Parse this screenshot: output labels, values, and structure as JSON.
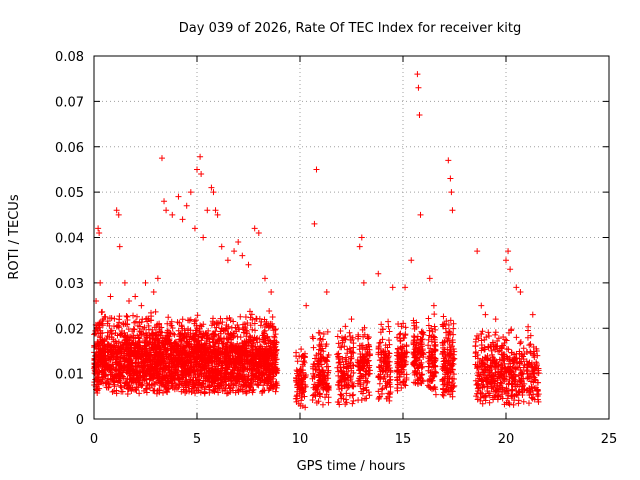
{
  "chart_data": {
    "type": "scatter",
    "title": "Day 039 of 2026, Rate Of TEC Index for receiver kitg",
    "xlabel": "GPS time / hours",
    "ylabel": "ROTI / TECUs",
    "xlim": [
      0,
      25
    ],
    "ylim": [
      0,
      0.08
    ],
    "x_ticks": [
      "0",
      "5",
      "10",
      "15",
      "20",
      "25"
    ],
    "y_ticks": [
      "0",
      "0.01",
      "0.02",
      "0.03",
      "0.04",
      "0.05",
      "0.06",
      "0.07",
      "0.08"
    ],
    "grid": true,
    "marker": "+",
    "color": "#ff0000",
    "series": [
      {
        "name": "ROTI",
        "x": [
          0.1,
          0.2,
          0.25,
          0.3,
          0.8,
          1.1,
          1.2,
          1.25,
          1.5,
          1.7,
          2.0,
          2.3,
          2.5,
          2.9,
          3.1,
          3.3,
          3.4,
          3.5,
          3.8,
          4.1,
          4.3,
          4.5,
          4.7,
          4.9,
          5.0,
          5.15,
          5.2,
          5.3,
          5.5,
          5.7,
          5.8,
          5.9,
          6.0,
          6.2,
          6.5,
          6.8,
          7.0,
          7.2,
          7.5,
          7.8,
          8.0,
          8.3,
          8.6,
          10.3,
          10.7,
          10.8,
          11.3,
          12.5,
          12.9,
          13.0,
          13.1,
          13.8,
          14.5,
          15.1,
          15.4,
          15.7,
          15.75,
          15.8,
          15.85,
          16.3,
          16.5,
          17.2,
          17.3,
          17.35,
          17.4,
          18.6,
          18.8,
          19.0,
          19.5,
          20.0,
          20.1,
          20.2,
          20.5,
          20.7,
          21.3
        ],
        "y": [
          0.026,
          0.042,
          0.041,
          0.03,
          0.027,
          0.046,
          0.045,
          0.038,
          0.03,
          0.026,
          0.027,
          0.025,
          0.03,
          0.028,
          0.031,
          0.0575,
          0.048,
          0.046,
          0.045,
          0.049,
          0.044,
          0.047,
          0.05,
          0.042,
          0.055,
          0.0578,
          0.054,
          0.04,
          0.046,
          0.051,
          0.05,
          0.046,
          0.045,
          0.038,
          0.035,
          0.037,
          0.039,
          0.036,
          0.034,
          0.042,
          0.041,
          0.031,
          0.028,
          0.025,
          0.043,
          0.055,
          0.028,
          0.022,
          0.038,
          0.04,
          0.03,
          0.032,
          0.029,
          0.029,
          0.035,
          0.076,
          0.073,
          0.067,
          0.045,
          0.031,
          0.025,
          0.057,
          0.053,
          0.05,
          0.046,
          0.037,
          0.025,
          0.023,
          0.022,
          0.035,
          0.037,
          0.033,
          0.029,
          0.028,
          0.023
        ]
      }
    ]
  }
}
